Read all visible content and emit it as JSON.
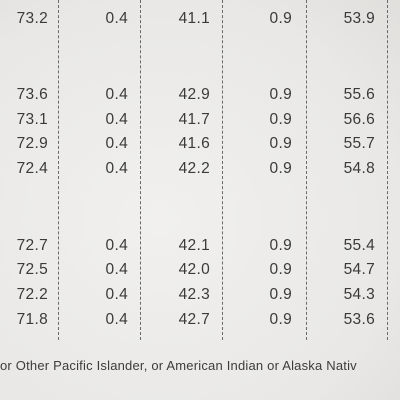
{
  "table": {
    "rows": [
      [
        "73.2",
        "0.4",
        "41.1",
        "0.9",
        "53.9"
      ],
      [
        "73.6",
        "0.4",
        "42.9",
        "0.9",
        "55.6"
      ],
      [
        "73.1",
        "0.4",
        "41.7",
        "0.9",
        "56.6"
      ],
      [
        "72.9",
        "0.4",
        "41.6",
        "0.9",
        "55.7"
      ],
      [
        "72.4",
        "0.4",
        "42.2",
        "0.9",
        "54.8"
      ],
      [
        "72.7",
        "0.4",
        "42.1",
        "0.9",
        "55.4"
      ],
      [
        "72.5",
        "0.4",
        "42.0",
        "0.9",
        "54.7"
      ],
      [
        "72.2",
        "0.4",
        "42.3",
        "0.9",
        "54.3"
      ],
      [
        "71.8",
        "0.4",
        "42.7",
        "0.9",
        "53.6"
      ]
    ]
  },
  "footnote": "or Other Pacific Islander, or American Indian or Alaska Nativ"
}
